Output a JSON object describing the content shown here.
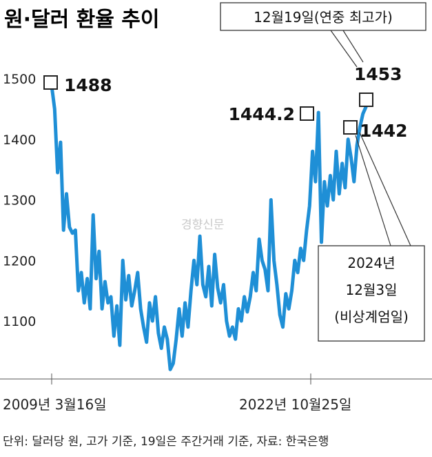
{
  "title": "원·달러 환율 추이",
  "watermark": "경향신문",
  "footnote": "단위: 달러당 원, 고가 기준, 19일은 주간거래 기준, 자료: 한국은행",
  "colors": {
    "line": "#1f8fd6",
    "text": "#1a1a1a",
    "box": "#333333"
  },
  "chart_data": {
    "type": "line",
    "ylim": [
      1020,
      1520
    ],
    "yticks": [
      "1500",
      "1400",
      "1300",
      "1200",
      "1100"
    ],
    "xticks": [
      "2009년 3월16일",
      "2022년 10월25일"
    ],
    "highlights": [
      {
        "label": "1488",
        "value": 1488
      },
      {
        "label": "1444.2",
        "value": 1444.2
      },
      {
        "label": "1442",
        "value": 1442
      },
      {
        "label": "1453",
        "value": 1453
      }
    ],
    "callouts": [
      {
        "lines": [
          "12월19일(연중 최고가)"
        ]
      },
      {
        "lines": [
          "2024년",
          "12월3일",
          "(비상계엄일)"
        ]
      }
    ],
    "values": [
      1488,
      1450,
      1345,
      1395,
      1250,
      1310,
      1255,
      1245,
      1250,
      1150,
      1180,
      1130,
      1170,
      1120,
      1275,
      1170,
      1215,
      1120,
      1165,
      1130,
      1140,
      1075,
      1125,
      1060,
      1200,
      1135,
      1175,
      1125,
      1150,
      1180,
      1120,
      1090,
      1065,
      1130,
      1100,
      1140,
      1080,
      1055,
      1090,
      1070,
      1020,
      1030,
      1070,
      1120,
      1075,
      1130,
      1090,
      1150,
      1200,
      1160,
      1240,
      1160,
      1140,
      1190,
      1125,
      1210,
      1155,
      1130,
      1160,
      1100,
      1075,
      1090,
      1070,
      1120,
      1100,
      1140,
      1115,
      1140,
      1180,
      1150,
      1235,
      1200,
      1185,
      1150,
      1300,
      1200,
      1160,
      1110,
      1090,
      1145,
      1120,
      1150,
      1200,
      1180,
      1220,
      1200,
      1250,
      1290,
      1380,
      1330,
      1444.2,
      1230,
      1330,
      1290,
      1340,
      1300,
      1380,
      1310,
      1360,
      1320,
      1400,
      1370,
      1330,
      1390,
      1420,
      1442,
      1453
    ]
  }
}
